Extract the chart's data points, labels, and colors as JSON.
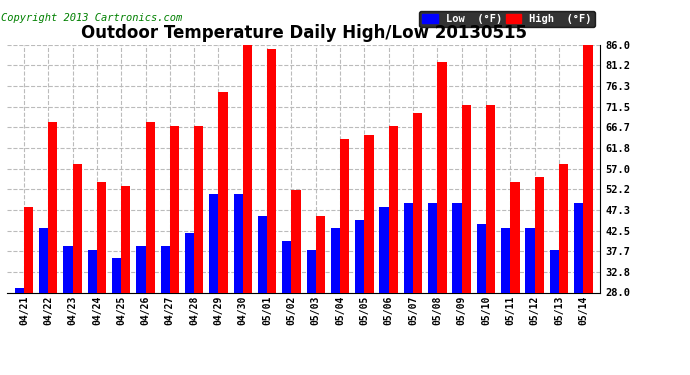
{
  "title": "Outdoor Temperature Daily High/Low 20130515",
  "copyright": "Copyright 2013 Cartronics.com",
  "legend_low": "Low  (°F)",
  "legend_high": "High  (°F)",
  "categories": [
    "04/21",
    "04/22",
    "04/23",
    "04/24",
    "04/25",
    "04/26",
    "04/27",
    "04/28",
    "04/29",
    "04/30",
    "05/01",
    "05/02",
    "05/03",
    "05/04",
    "05/05",
    "05/06",
    "05/07",
    "05/08",
    "05/09",
    "05/10",
    "05/11",
    "05/12",
    "05/13",
    "05/14"
  ],
  "high": [
    48,
    68,
    58,
    54,
    53,
    68,
    67,
    67,
    75,
    86,
    85,
    52,
    46,
    64,
    65,
    67,
    70,
    82,
    72,
    72,
    54,
    55,
    58,
    86
  ],
  "low": [
    29,
    43,
    39,
    38,
    36,
    39,
    39,
    42,
    51,
    51,
    46,
    40,
    38,
    43,
    45,
    48,
    49,
    49,
    49,
    44,
    43,
    43,
    38,
    49
  ],
  "ymin": 28.0,
  "ymax": 86.0,
  "yticks": [
    28.0,
    32.8,
    37.7,
    42.5,
    47.3,
    52.2,
    57.0,
    61.8,
    66.7,
    71.5,
    76.3,
    81.2,
    86.0
  ],
  "color_low": "#0000ff",
  "color_high": "#ff0000",
  "bg_color": "#ffffff",
  "grid_color": "#bbbbbb",
  "title_fontsize": 12,
  "copyright_fontsize": 7.5,
  "bar_width": 0.38
}
